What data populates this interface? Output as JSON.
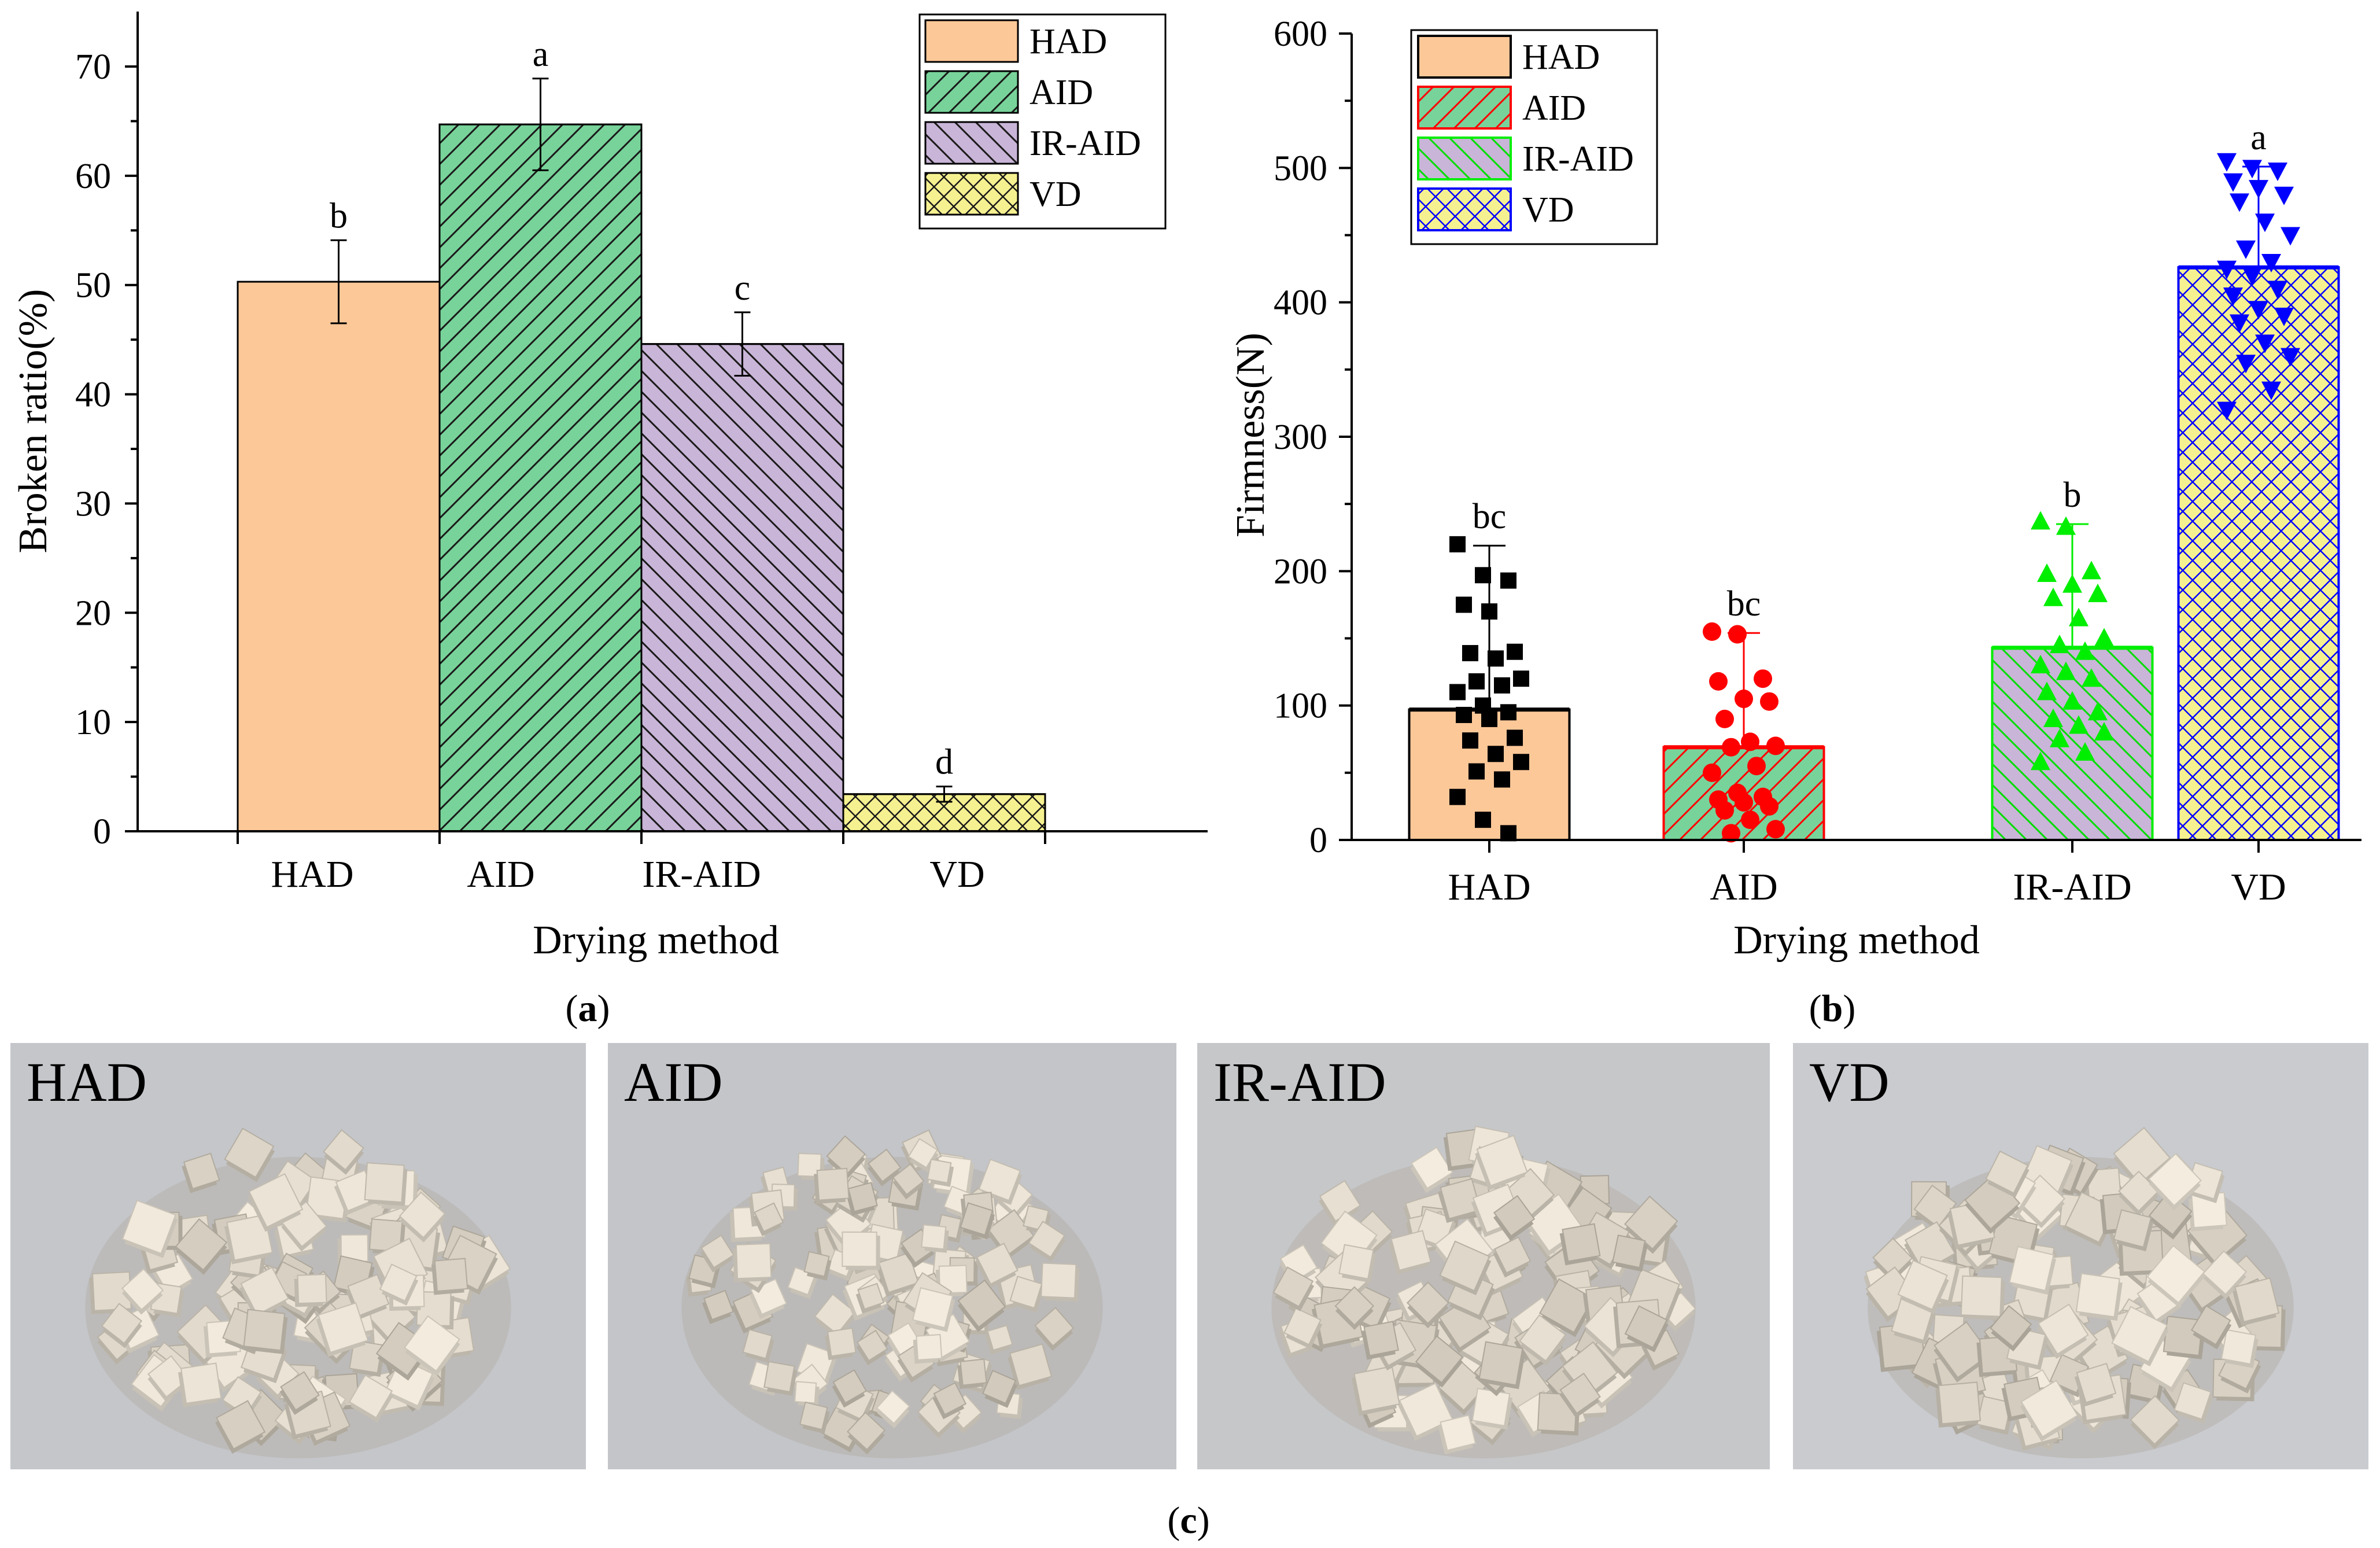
{
  "colors": {
    "HAD": "#fdc898",
    "AID": "#78d39a",
    "IR-AID": "#c9b5d8",
    "VD": "#f6f190",
    "b_HAD_edge": "#000000",
    "b_AID_edge": "#ff0000",
    "b_IR-AID_edge": "#00ee00",
    "b_VD_edge": "#0000ff"
  },
  "chart_data": [
    {
      "panel": "a",
      "panel_label": "a",
      "type": "bar",
      "xlabel": "Drying method",
      "ylabel": "Broken ratio(%)",
      "ylim": [
        0,
        75
      ],
      "yticks": [
        0,
        10,
        20,
        30,
        40,
        50,
        60,
        70
      ],
      "categories": [
        "HAD",
        "AID",
        "IR-AID",
        "VD"
      ],
      "values": [
        50.3,
        64.7,
        44.6,
        3.4
      ],
      "errors": [
        3.8,
        4.2,
        2.9,
        0.7
      ],
      "letters": [
        "b",
        "a",
        "c",
        "d"
      ],
      "patterns": [
        "solid",
        "diagonal",
        "diagonal-reverse",
        "crosshatch"
      ],
      "legend": [
        "HAD",
        "AID",
        "IR-AID",
        "VD"
      ],
      "legend_position": "top-right"
    },
    {
      "panel": "b",
      "panel_label": "b",
      "type": "bar",
      "xlabel": "Drying method",
      "ylabel": "Firmness(N)",
      "ylim": [
        0,
        600
      ],
      "yticks": [
        0,
        100,
        200,
        300,
        400,
        500,
        600
      ],
      "categories": [
        "HAD",
        "AID",
        "IR-AID",
        "VD"
      ],
      "values": [
        97,
        69,
        143,
        426
      ],
      "sd": [
        122,
        85,
        92,
        75
      ],
      "letters": [
        "bc",
        "bc",
        "b",
        "a"
      ],
      "patterns": [
        "solid",
        "diagonal",
        "diagonal-reverse",
        "crosshatch"
      ],
      "legend": [
        "HAD",
        "AID",
        "IR-AID",
        "VD"
      ],
      "legend_position": "top-left",
      "points": {
        "HAD": [
          220,
          197,
          193,
          175,
          170,
          140,
          139,
          135,
          120,
          118,
          115,
          110,
          100,
          95,
          93,
          90,
          76,
          74,
          64,
          58,
          51,
          45,
          32,
          15,
          5
        ],
        "AID": [
          155,
          153,
          120,
          118,
          105,
          103,
          90,
          73,
          70,
          69,
          55,
          50,
          35,
          32,
          30,
          28,
          25,
          22,
          15,
          8,
          5
        ],
        "IR-AID": [
          237,
          233,
          200,
          198,
          190,
          183,
          180,
          165,
          150,
          145,
          140,
          130,
          125,
          120,
          110,
          103,
          95,
          90,
          85,
          80,
          75,
          65,
          58
        ],
        "VD": [
          505,
          500,
          498,
          490,
          485,
          480,
          475,
          460,
          450,
          440,
          430,
          425,
          420,
          410,
          405,
          395,
          390,
          385,
          370,
          360,
          355,
          335,
          320
        ]
      },
      "markers": {
        "HAD": "square",
        "AID": "circle",
        "IR-AID": "triangle-up",
        "VD": "triangle-down"
      }
    }
  ],
  "photos": {
    "panel_label": "c",
    "items": [
      {
        "label": "HAD"
      },
      {
        "label": "AID"
      },
      {
        "label": "IR-AID"
      },
      {
        "label": "VD"
      }
    ]
  }
}
